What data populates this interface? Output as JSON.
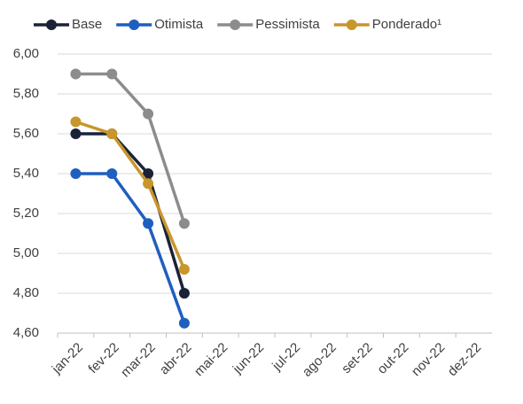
{
  "chart_data": {
    "type": "line",
    "categories": [
      "jan-22",
      "fev-22",
      "mar-22",
      "abr-22",
      "mai-22",
      "jun-22",
      "jul-22",
      "ago-22",
      "set-22",
      "out-22",
      "nov-22",
      "dez-22"
    ],
    "series": [
      {
        "name": "Base",
        "color": "#1a2238",
        "values": [
          5.6,
          5.6,
          5.4,
          4.8,
          null,
          null,
          null,
          null,
          null,
          null,
          null,
          null
        ]
      },
      {
        "name": "Otimista",
        "color": "#1f5fbf",
        "values": [
          5.4,
          5.4,
          5.15,
          4.65,
          null,
          null,
          null,
          null,
          null,
          null,
          null,
          null
        ]
      },
      {
        "name": "Pessimista",
        "color": "#8c8c8c",
        "values": [
          5.9,
          5.9,
          5.7,
          5.15,
          null,
          null,
          null,
          null,
          null,
          null,
          null,
          null
        ]
      },
      {
        "name": "Ponderado¹",
        "color": "#c9962b",
        "values": [
          5.66,
          5.6,
          5.35,
          4.92,
          null,
          null,
          null,
          null,
          null,
          null,
          null,
          null
        ]
      }
    ],
    "ylim": [
      4.6,
      6.0
    ],
    "yticks": [
      {
        "value": 4.6,
        "label": "4,60"
      },
      {
        "value": 4.8,
        "label": "4,80"
      },
      {
        "value": 5.0,
        "label": "5,00"
      },
      {
        "value": 5.2,
        "label": "5,20"
      },
      {
        "value": 5.4,
        "label": "5,40"
      },
      {
        "value": 5.6,
        "label": "5,60"
      },
      {
        "value": 5.8,
        "label": "5,80"
      },
      {
        "value": 6.0,
        "label": "6,00"
      }
    ],
    "grid": true,
    "legend": "top"
  }
}
